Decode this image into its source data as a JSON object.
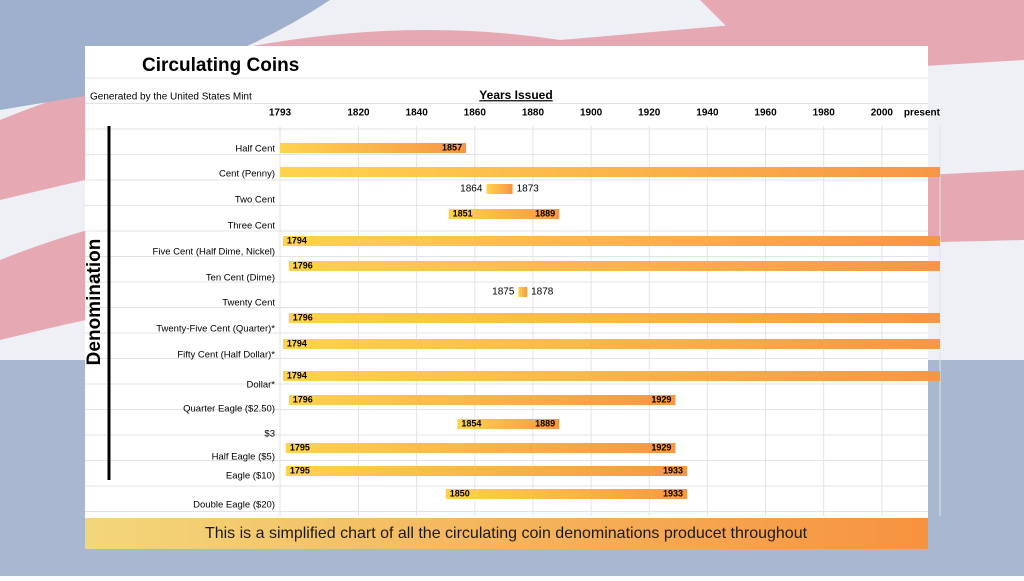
{
  "chart_data": {
    "type": "range",
    "title": "Circulating Coins",
    "subtitle": "Generated by the United States Mint",
    "x_label": "Years Issued",
    "y_label": "Denomination",
    "caption": "This is a simplified chart of all the circulating coin denominations producet throughout",
    "xlim": [
      1793,
      2020
    ],
    "xticks": [
      1793,
      1820,
      1840,
      1860,
      1880,
      1900,
      1920,
      1940,
      1960,
      1980,
      2000,
      {
        "value": 2020,
        "label": "present"
      }
    ],
    "color_start": "#ffd34d",
    "color_end": "#f79646",
    "bars": [
      {
        "name": "Half Cent",
        "start": 1793,
        "end": 1857,
        "show": [
          "end"
        ]
      },
      {
        "name": "Cent (Penny)",
        "start": 1793,
        "end": 2020,
        "show": []
      },
      {
        "name": "Two Cent",
        "start": 1864,
        "end": 1873,
        "show": [
          "start",
          "end"
        ]
      },
      {
        "name": "Three Cent",
        "start": 1851,
        "end": 1889,
        "show": [
          "start",
          "end"
        ]
      },
      {
        "name": "Five Cent (Half Dime, Nickel)",
        "start": 1794,
        "end": 2020,
        "show": [
          "start"
        ]
      },
      {
        "name": "Ten Cent (Dime)",
        "start": 1796,
        "end": 2020,
        "show": [
          "start"
        ]
      },
      {
        "name": "Twenty Cent",
        "start": 1875,
        "end": 1878,
        "show": [
          "start",
          "end"
        ]
      },
      {
        "name": "Twenty-Five Cent (Quarter)*",
        "start": 1796,
        "end": 2020,
        "show": [
          "start"
        ]
      },
      {
        "name": "Fifty Cent (Half Dollar)*",
        "start": 1794,
        "end": 2020,
        "show": [
          "start"
        ]
      },
      {
        "name": "Dollar*",
        "start": 1794,
        "end": 2020,
        "show": [
          "start"
        ]
      },
      {
        "name": "Quarter Eagle ($2.50)",
        "start": 1796,
        "end": 1929,
        "show": [
          "start",
          "end"
        ]
      },
      {
        "name": "$3",
        "start": 1854,
        "end": 1889,
        "show": [
          "start",
          "end"
        ]
      },
      {
        "name": "Half Eagle ($5)",
        "start": 1795,
        "end": 1929,
        "show": [
          "start",
          "end"
        ]
      },
      {
        "name": "Eagle ($10)",
        "start": 1795,
        "end": 1933,
        "show": [
          "start",
          "end"
        ]
      },
      {
        "name": "Double Eagle ($20)",
        "start": 1850,
        "end": 1933,
        "show": [
          "start",
          "end"
        ]
      }
    ]
  }
}
